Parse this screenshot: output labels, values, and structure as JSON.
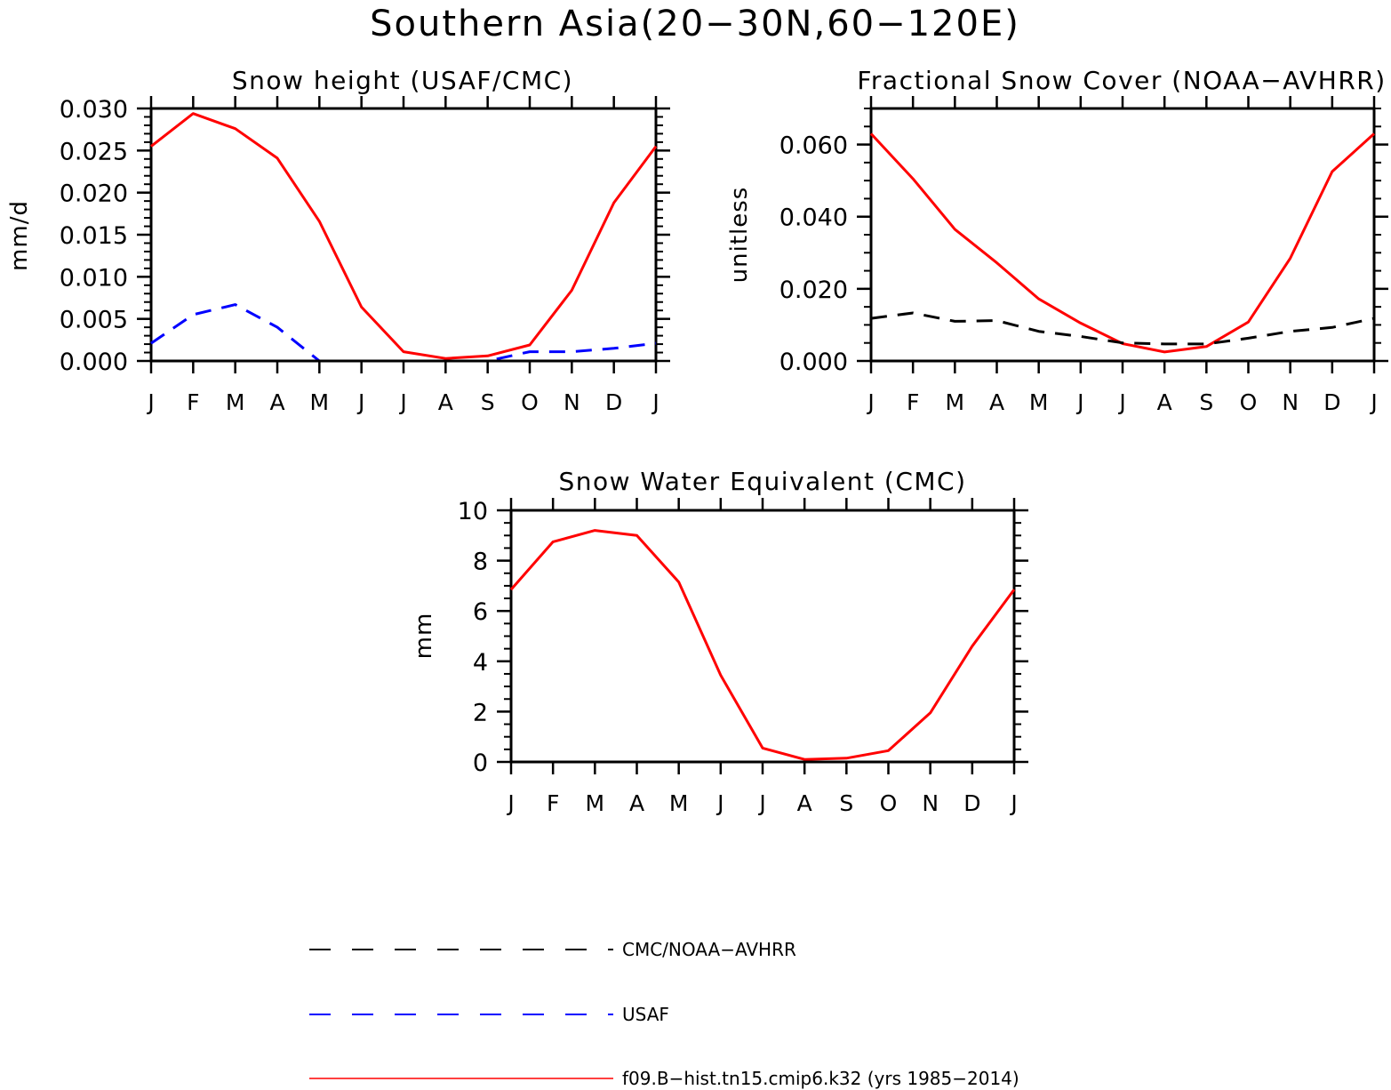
{
  "figure": {
    "title": "Southern Asia(20−30N,60−120E)"
  },
  "legend": [
    {
      "label": "CMC/NOAA−AVHRR",
      "color": "#000000",
      "style": "dashed"
    },
    {
      "label": "USAF",
      "color": "#0000ff",
      "style": "dashed"
    },
    {
      "label": "f09.B−hist.tn15.cmip6.k32 (yrs 1985−2014)",
      "color": "#ff0000",
      "style": "solid"
    }
  ],
  "chart_data": [
    {
      "type": "line",
      "title": "Snow height (USAF/CMC)",
      "xlabel": "",
      "ylabel": "mm/d",
      "categories": [
        "J",
        "F",
        "M",
        "A",
        "M",
        "J",
        "J",
        "A",
        "S",
        "O",
        "N",
        "D",
        "J"
      ],
      "ylim": [
        0,
        0.03
      ],
      "yticks": [
        "0.000",
        "0.005",
        "0.010",
        "0.015",
        "0.020",
        "0.025",
        "0.030"
      ],
      "series": [
        {
          "name": "f09.B−hist.tn15.cmip6.k32 (yrs 1985−2014)",
          "color": "#ff0000",
          "style": "solid",
          "values": [
            0.0255,
            0.0294,
            0.0276,
            0.0241,
            0.0166,
            0.0064,
            0.0011,
            0.0003,
            0.0006,
            0.0019,
            0.0084,
            0.0188,
            0.0255
          ]
        },
        {
          "name": "USAF",
          "color": "#0000ff",
          "style": "dashed",
          "values": [
            0.0021,
            0.0055,
            0.0067,
            0.004,
            0.0,
            0.0,
            0.0,
            0.0,
            0.0,
            0.0011,
            0.0011,
            0.0015,
            0.0021
          ]
        },
        {
          "name": "CMC/NOAA−AVHRR",
          "color": "#000000",
          "style": "solid",
          "values": [
            0,
            0,
            0,
            0,
            0,
            0,
            0,
            0,
            0,
            0,
            0,
            0,
            0
          ]
        }
      ]
    },
    {
      "type": "line",
      "title": "Fractional Snow Cover (NOAA−AVHRR)",
      "xlabel": "",
      "ylabel": "unitless",
      "categories": [
        "J",
        "F",
        "M",
        "A",
        "M",
        "J",
        "J",
        "A",
        "S",
        "O",
        "N",
        "D",
        "J"
      ],
      "ylim": [
        0,
        0.07
      ],
      "yticks": [
        "0.000",
        "0.020",
        "0.040",
        "0.060"
      ],
      "series": [
        {
          "name": "f09.B−hist.tn15.cmip6.k32 (yrs 1985−2014)",
          "color": "#ff0000",
          "style": "solid",
          "values": [
            0.063,
            0.0505,
            0.0365,
            0.0272,
            0.0172,
            0.0105,
            0.0048,
            0.0025,
            0.004,
            0.0108,
            0.0285,
            0.0525,
            0.063
          ]
        },
        {
          "name": "CMC/NOAA−AVHRR",
          "color": "#000000",
          "style": "dashed",
          "values": [
            0.0118,
            0.0133,
            0.011,
            0.0112,
            0.0082,
            0.0068,
            0.005,
            0.0047,
            0.0047,
            0.0063,
            0.0082,
            0.0093,
            0.0118
          ]
        }
      ]
    },
    {
      "type": "line",
      "title": "Snow Water Equivalent (CMC)",
      "xlabel": "",
      "ylabel": "mm",
      "categories": [
        "J",
        "F",
        "M",
        "A",
        "M",
        "J",
        "J",
        "A",
        "S",
        "O",
        "N",
        "D",
        "J"
      ],
      "ylim": [
        0,
        10
      ],
      "yticks": [
        "0",
        "2",
        "4",
        "6",
        "8",
        "10"
      ],
      "series": [
        {
          "name": "f09.B−hist.tn15.cmip6.k32 (yrs 1985−2014)",
          "color": "#ff0000",
          "style": "solid",
          "values": [
            6.85,
            8.75,
            9.2,
            9.0,
            7.15,
            3.45,
            0.55,
            0.1,
            0.15,
            0.45,
            1.95,
            4.6,
            6.85
          ]
        },
        {
          "name": "CMC/NOAA−AVHRR",
          "color": "#000000",
          "style": "solid",
          "values": [
            0,
            0,
            0,
            0,
            0,
            0,
            0,
            0,
            0,
            0,
            0,
            0,
            0
          ]
        }
      ]
    }
  ]
}
